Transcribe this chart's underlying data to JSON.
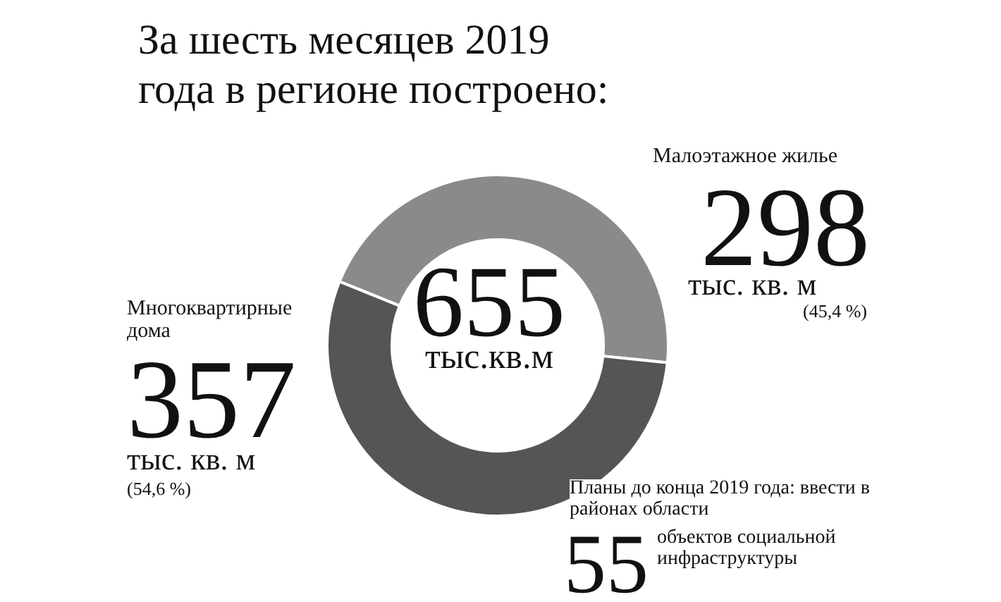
{
  "chart_data": {
    "type": "donut",
    "title": "За шесть месяцев 2019 года в регионе построено:",
    "categories": [
      "Малоэтажное жилье",
      "Многоквартирные дома"
    ],
    "values": [
      298,
      357
    ],
    "colors": [
      "#8a8a8a",
      "#555555"
    ],
    "data_labels": true,
    "legend": false,
    "annotations": [
      "655",
      "тыс.кв.м",
      "тыс. кв. м",
      "(45,4 %)",
      "тыс. кв. м",
      "(54,6 %)",
      "Планы до конца 2019 года: ввести в районах области",
      "55",
      "объектов социальной инфраструктуры"
    ]
  }
}
